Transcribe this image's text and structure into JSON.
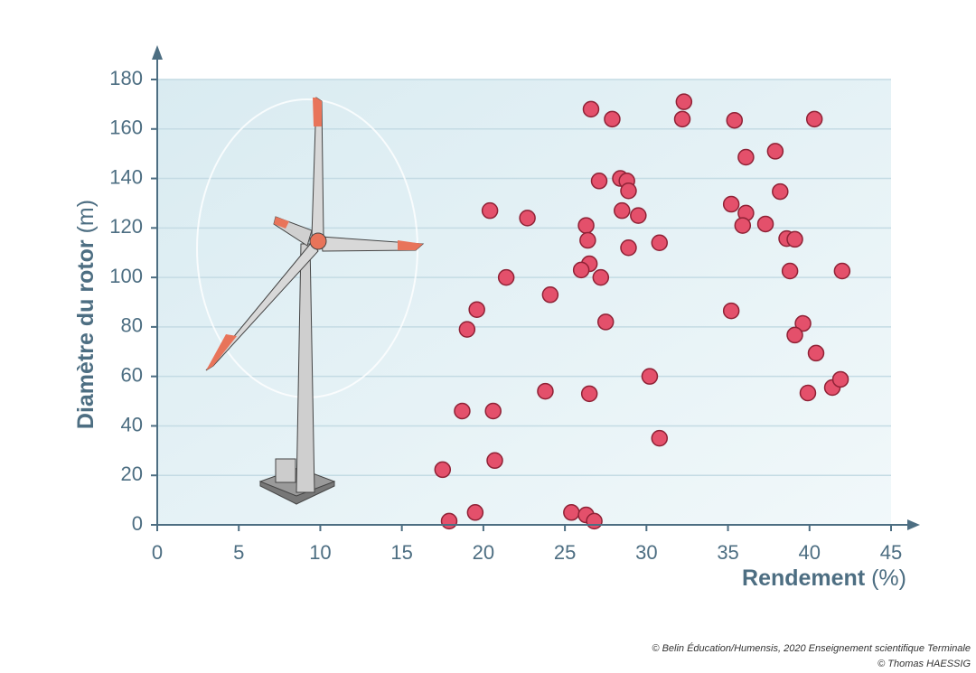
{
  "chart_data": {
    "type": "scatter",
    "x_label": "Rendement",
    "x_unit": "(%)",
    "y_label": "Diamètre du rotor",
    "y_unit": "(m)",
    "x": [
      17.5,
      17.9,
      19.5,
      18.7,
      19.0,
      19.6,
      20.4,
      20.6,
      20.7,
      21.4,
      22.7,
      24.1,
      23.8,
      25.4,
      26.3,
      26.8,
      26.5,
      26.6,
      27.9,
      27.1,
      28.4,
      28.8,
      28.9,
      28.5,
      29.5,
      26.3,
      26.4,
      26.5,
      26.0,
      27.2,
      28.9,
      30.8,
      27.5,
      30.2,
      30.8,
      32.3,
      32.2,
      35.4,
      36.1,
      37.9,
      40.3,
      35.2,
      36.1,
      35.9,
      37.3,
      38.2,
      38.6,
      39.1,
      38.8,
      42.0,
      35.2,
      39.6,
      39.1,
      40.4,
      39.9,
      41.4,
      41.9
    ],
    "values": [
      22.3,
      1.5,
      5,
      46,
      79,
      87,
      127,
      46,
      26,
      100,
      124,
      93,
      54,
      5,
      4,
      1.5,
      53,
      168,
      164,
      139,
      140,
      139,
      135,
      127,
      125,
      121,
      115,
      105.5,
      103,
      100,
      112,
      114,
      82,
      60,
      35,
      171,
      164,
      163.5,
      148.6,
      151,
      164,
      129.6,
      126,
      121,
      121.6,
      134.7,
      115.7,
      115.4,
      102.6,
      102.6,
      86.5,
      81.4,
      76.7,
      69.4,
      53.3,
      55.5,
      58.8
    ],
    "color": "#e4506b",
    "xlim": [
      0,
      45
    ],
    "xticks": [
      0,
      5,
      10,
      15,
      20,
      25,
      30,
      35,
      40,
      45
    ],
    "ylim": [
      0,
      180
    ],
    "yticks": [
      0,
      20,
      40,
      60,
      80,
      100,
      120,
      140,
      160,
      180
    ],
    "grid": true
  },
  "credits": [
    "© Belin Éducation/Humensis, 2020 Enseignement scientifique Terminale",
    "© Thomas HAESSIG"
  ]
}
